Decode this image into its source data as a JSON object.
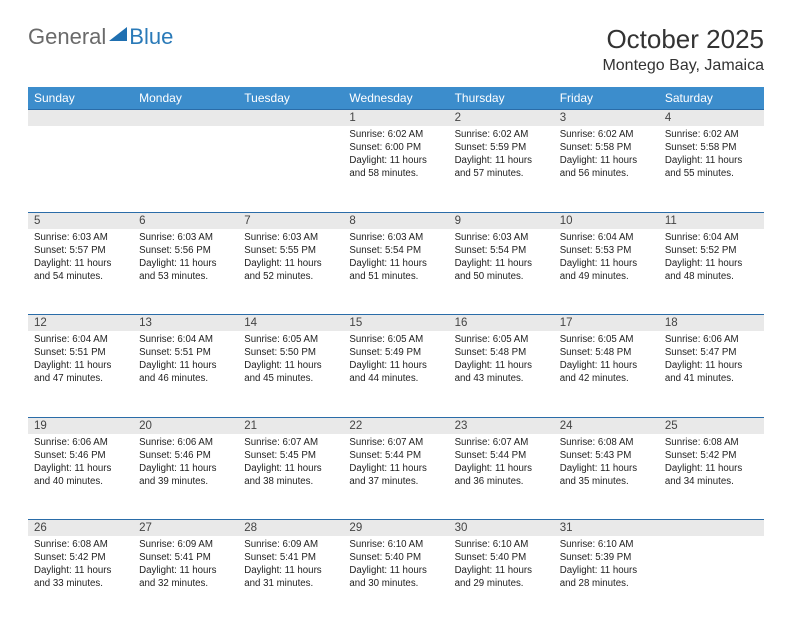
{
  "brand": {
    "textGray": "General",
    "textBlue": "Blue"
  },
  "title": "October 2025",
  "location": "Montego Bay, Jamaica",
  "colors": {
    "headerBg": "#3c8dcc",
    "headerText": "#ffffff",
    "dayNumBg": "#e9e9e9",
    "ruleLine": "#2a6ca8",
    "bodyText": "#222222",
    "logoGray": "#6a6a6a",
    "logoBlue": "#2a7ab8"
  },
  "dayNames": [
    "Sunday",
    "Monday",
    "Tuesday",
    "Wednesday",
    "Thursday",
    "Friday",
    "Saturday"
  ],
  "weeks": [
    [
      null,
      null,
      null,
      {
        "n": "1",
        "sr": "6:02 AM",
        "ss": "6:00 PM",
        "dl": "11 hours and 58 minutes."
      },
      {
        "n": "2",
        "sr": "6:02 AM",
        "ss": "5:59 PM",
        "dl": "11 hours and 57 minutes."
      },
      {
        "n": "3",
        "sr": "6:02 AM",
        "ss": "5:58 PM",
        "dl": "11 hours and 56 minutes."
      },
      {
        "n": "4",
        "sr": "6:02 AM",
        "ss": "5:58 PM",
        "dl": "11 hours and 55 minutes."
      }
    ],
    [
      {
        "n": "5",
        "sr": "6:03 AM",
        "ss": "5:57 PM",
        "dl": "11 hours and 54 minutes."
      },
      {
        "n": "6",
        "sr": "6:03 AM",
        "ss": "5:56 PM",
        "dl": "11 hours and 53 minutes."
      },
      {
        "n": "7",
        "sr": "6:03 AM",
        "ss": "5:55 PM",
        "dl": "11 hours and 52 minutes."
      },
      {
        "n": "8",
        "sr": "6:03 AM",
        "ss": "5:54 PM",
        "dl": "11 hours and 51 minutes."
      },
      {
        "n": "9",
        "sr": "6:03 AM",
        "ss": "5:54 PM",
        "dl": "11 hours and 50 minutes."
      },
      {
        "n": "10",
        "sr": "6:04 AM",
        "ss": "5:53 PM",
        "dl": "11 hours and 49 minutes."
      },
      {
        "n": "11",
        "sr": "6:04 AM",
        "ss": "5:52 PM",
        "dl": "11 hours and 48 minutes."
      }
    ],
    [
      {
        "n": "12",
        "sr": "6:04 AM",
        "ss": "5:51 PM",
        "dl": "11 hours and 47 minutes."
      },
      {
        "n": "13",
        "sr": "6:04 AM",
        "ss": "5:51 PM",
        "dl": "11 hours and 46 minutes."
      },
      {
        "n": "14",
        "sr": "6:05 AM",
        "ss": "5:50 PM",
        "dl": "11 hours and 45 minutes."
      },
      {
        "n": "15",
        "sr": "6:05 AM",
        "ss": "5:49 PM",
        "dl": "11 hours and 44 minutes."
      },
      {
        "n": "16",
        "sr": "6:05 AM",
        "ss": "5:48 PM",
        "dl": "11 hours and 43 minutes."
      },
      {
        "n": "17",
        "sr": "6:05 AM",
        "ss": "5:48 PM",
        "dl": "11 hours and 42 minutes."
      },
      {
        "n": "18",
        "sr": "6:06 AM",
        "ss": "5:47 PM",
        "dl": "11 hours and 41 minutes."
      }
    ],
    [
      {
        "n": "19",
        "sr": "6:06 AM",
        "ss": "5:46 PM",
        "dl": "11 hours and 40 minutes."
      },
      {
        "n": "20",
        "sr": "6:06 AM",
        "ss": "5:46 PM",
        "dl": "11 hours and 39 minutes."
      },
      {
        "n": "21",
        "sr": "6:07 AM",
        "ss": "5:45 PM",
        "dl": "11 hours and 38 minutes."
      },
      {
        "n": "22",
        "sr": "6:07 AM",
        "ss": "5:44 PM",
        "dl": "11 hours and 37 minutes."
      },
      {
        "n": "23",
        "sr": "6:07 AM",
        "ss": "5:44 PM",
        "dl": "11 hours and 36 minutes."
      },
      {
        "n": "24",
        "sr": "6:08 AM",
        "ss": "5:43 PM",
        "dl": "11 hours and 35 minutes."
      },
      {
        "n": "25",
        "sr": "6:08 AM",
        "ss": "5:42 PM",
        "dl": "11 hours and 34 minutes."
      }
    ],
    [
      {
        "n": "26",
        "sr": "6:08 AM",
        "ss": "5:42 PM",
        "dl": "11 hours and 33 minutes."
      },
      {
        "n": "27",
        "sr": "6:09 AM",
        "ss": "5:41 PM",
        "dl": "11 hours and 32 minutes."
      },
      {
        "n": "28",
        "sr": "6:09 AM",
        "ss": "5:41 PM",
        "dl": "11 hours and 31 minutes."
      },
      {
        "n": "29",
        "sr": "6:10 AM",
        "ss": "5:40 PM",
        "dl": "11 hours and 30 minutes."
      },
      {
        "n": "30",
        "sr": "6:10 AM",
        "ss": "5:40 PM",
        "dl": "11 hours and 29 minutes."
      },
      {
        "n": "31",
        "sr": "6:10 AM",
        "ss": "5:39 PM",
        "dl": "11 hours and 28 minutes."
      },
      null
    ]
  ],
  "labels": {
    "sunrise": "Sunrise:",
    "sunset": "Sunset:",
    "daylight": "Daylight:"
  }
}
